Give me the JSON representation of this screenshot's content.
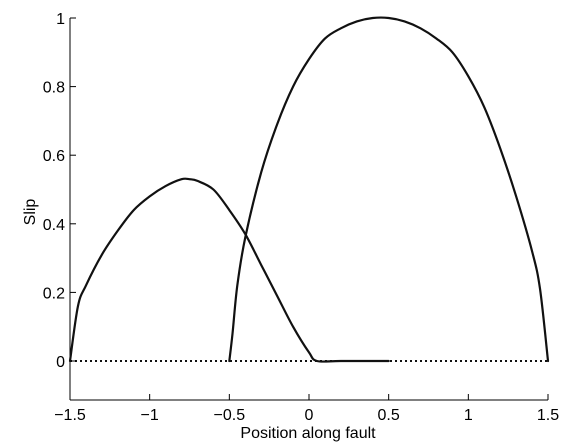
{
  "chart_data": {
    "type": "line",
    "title": "",
    "xlabel": "Position along fault",
    "ylabel": "Slip",
    "xlim": [
      -1.5,
      1.5
    ],
    "ylim": [
      0,
      1
    ],
    "grid": false,
    "x_ticks": [
      -1.5,
      -1,
      -0.5,
      0,
      0.5,
      1,
      1.5
    ],
    "x_tick_labels": [
      "−1.5",
      "−1",
      "−0.5",
      "0",
      "0.5",
      "1",
      "1.5"
    ],
    "y_ticks": [
      0,
      0.2,
      0.4,
      0.6,
      0.8,
      1
    ],
    "y_tick_labels": [
      "0",
      "0.2",
      "0.4",
      "0.6",
      "0.8",
      "1"
    ],
    "series": [
      {
        "style": "solid",
        "points": [
          [
            -1.5,
            0
          ],
          [
            -1.45,
            0.16
          ],
          [
            -1.4,
            0.22
          ],
          [
            -1.3,
            0.31
          ],
          [
            -1.2,
            0.38
          ],
          [
            -1.1,
            0.44
          ],
          [
            -1.0,
            0.48
          ],
          [
            -0.9,
            0.51
          ],
          [
            -0.8,
            0.53
          ],
          [
            -0.75,
            0.53
          ],
          [
            -0.7,
            0.525
          ],
          [
            -0.6,
            0.5
          ],
          [
            -0.5,
            0.44
          ],
          [
            -0.4,
            0.37
          ],
          [
            -0.3,
            0.28
          ],
          [
            -0.2,
            0.19
          ],
          [
            -0.1,
            0.1
          ],
          [
            0.0,
            0.025
          ],
          [
            0.05,
            0.0
          ],
          [
            0.2,
            0.0
          ],
          [
            0.5,
            0.0
          ]
        ]
      },
      {
        "style": "solid",
        "points": [
          [
            -0.5,
            0
          ],
          [
            -0.48,
            0.08
          ],
          [
            -0.45,
            0.22
          ],
          [
            -0.4,
            0.36
          ],
          [
            -0.3,
            0.55
          ],
          [
            -0.2,
            0.69
          ],
          [
            -0.1,
            0.8
          ],
          [
            0.0,
            0.88
          ],
          [
            0.1,
            0.94
          ],
          [
            0.2,
            0.97
          ],
          [
            0.3,
            0.99
          ],
          [
            0.4,
            1.0
          ],
          [
            0.5,
            1.0
          ],
          [
            0.6,
            0.99
          ],
          [
            0.7,
            0.97
          ],
          [
            0.8,
            0.94
          ],
          [
            0.9,
            0.9
          ],
          [
            1.0,
            0.83
          ],
          [
            1.1,
            0.74
          ],
          [
            1.2,
            0.62
          ],
          [
            1.3,
            0.48
          ],
          [
            1.4,
            0.32
          ],
          [
            1.45,
            0.21
          ],
          [
            1.5,
            0
          ]
        ]
      },
      {
        "style": "dotted",
        "points": [
          [
            -1.5,
            0
          ],
          [
            1.5,
            0
          ]
        ]
      }
    ]
  }
}
